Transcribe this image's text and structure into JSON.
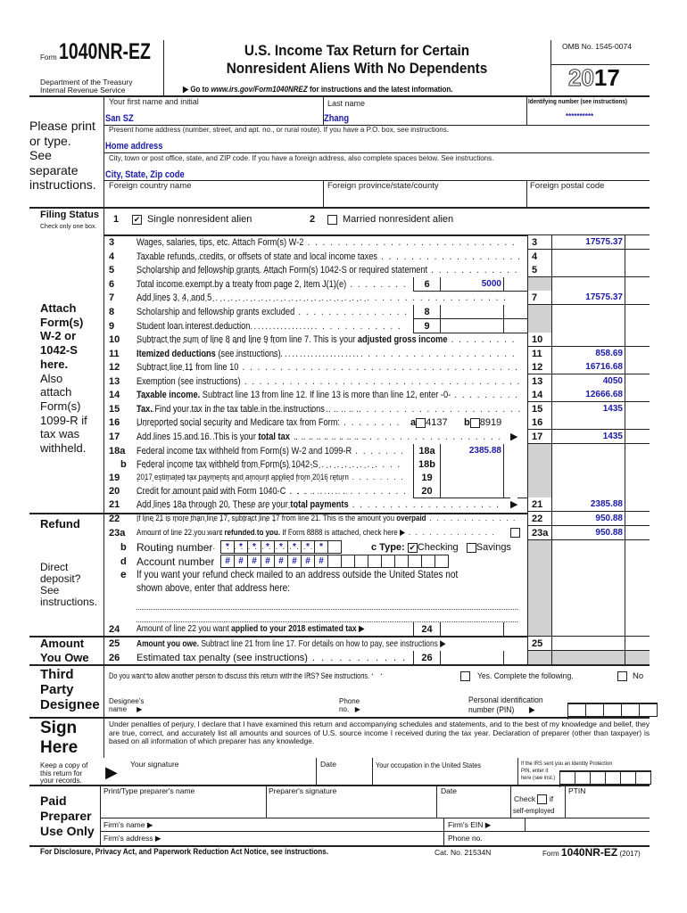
{
  "header": {
    "form_prefix": "Form",
    "form_number": "1040NR-EZ",
    "dept_line1": "Department of the Treasury",
    "dept_line2": "Internal Revenue Service",
    "title_line1": "U.S. Income Tax Return for Certain",
    "title_line2": "Nonresident Aliens With No Dependents",
    "goto_prefix": "▶ Go to ",
    "goto_url": "www.irs.gov/Form1040NREZ",
    "goto_suffix": " for instructions and the latest information.",
    "omb": "OMB No. 1545-0074",
    "year_outline": "20",
    "year_bold": "17"
  },
  "identity": {
    "side_note": [
      "Please print",
      "or type.",
      "See",
      "separate",
      "instructions."
    ],
    "first_name_label": "Your first name and initial",
    "first_name_value": "San SZ",
    "last_name_label": "Last name",
    "last_name_value": "Zhang",
    "id_label": "Identifying number (see instructions)",
    "id_value": "**********",
    "address_label": "Present home address (number, street, and apt. no., or rural route). If you have a P.O. box, see instructions.",
    "address_value": "Home address",
    "city_label": "City, town or post office, state, and ZIP code. If you have a foreign address, also complete spaces below. See instructions.",
    "city_value": "City, State, Zip code",
    "foreign_country_label": "Foreign country name",
    "foreign_province_label": "Foreign province/state/county",
    "foreign_postal_label": "Foreign postal code"
  },
  "filing_status": {
    "title": "Filing Status",
    "note": "Check only one box.",
    "options": [
      {
        "num": "1",
        "label": "Single nonresident alien",
        "checked": true
      },
      {
        "num": "2",
        "label": "Married nonresident alien",
        "checked": false
      }
    ]
  },
  "side_labels": {
    "attach_bold": [
      "Attach",
      "Form(s)",
      "W-2 or",
      "1042-S",
      "here."
    ],
    "attach_normal": [
      "Also",
      "attach",
      "Form(s)",
      "1099-R if",
      "tax was",
      "withheld."
    ],
    "refund": "Refund",
    "direct_deposit": [
      "Direct",
      "deposit?",
      "See",
      "instructions."
    ],
    "amount_owe": [
      "Amount",
      "You Owe"
    ]
  },
  "lines": [
    {
      "num": "3",
      "segs": [
        {
          "t": "Wages, salaries, tips, etc. Attach Form(s) W-2"
        }
      ],
      "box": "right",
      "amount": "17575.37"
    },
    {
      "num": "4",
      "segs": [
        {
          "t": "Taxable refunds, credits, or offsets of state and local income taxes"
        }
      ],
      "box": "right",
      "amount": ""
    },
    {
      "num": "5",
      "segs": [
        {
          "t": "Scholarship and fellowship grants. Attach Form(s) 1042-S or required statement"
        }
      ],
      "box": "right",
      "amount": ""
    },
    {
      "num": "6",
      "segs": [
        {
          "t": "Total income exempt by a treaty from page 2, Item J(1)(e)"
        }
      ],
      "box": "inner",
      "amount": "5000"
    },
    {
      "num": "7",
      "segs": [
        {
          "t": "Add lines 3, 4, and 5"
        }
      ],
      "box": "right",
      "amount": "17575.37"
    },
    {
      "num": "8",
      "segs": [
        {
          "t": "Scholarship and fellowship grants excluded"
        }
      ],
      "box": "inner",
      "amount": ""
    },
    {
      "num": "9",
      "segs": [
        {
          "t": "Student loan interest deduction"
        }
      ],
      "box": "inner",
      "amount": ""
    },
    {
      "num": "10",
      "segs": [
        {
          "t": "Subtract the sum of line 8 and line 9 from line 7. This is your "
        },
        {
          "t": "adjusted gross income",
          "b": true
        }
      ],
      "box": "right",
      "amount": ""
    },
    {
      "num": "11",
      "segs": [
        {
          "t": "Itemized deductions",
          "b": true
        },
        {
          "t": " (see instructions)"
        }
      ],
      "box": "right",
      "amount": "858.69"
    },
    {
      "num": "12",
      "segs": [
        {
          "t": "Subtract line 11 from line 10"
        }
      ],
      "box": "right",
      "amount": "16716.68"
    },
    {
      "num": "13",
      "segs": [
        {
          "t": "Exemption (see instructions)"
        }
      ],
      "box": "right",
      "amount": "4050"
    },
    {
      "num": "14",
      "segs": [
        {
          "t": "Taxable income.",
          "b": true
        },
        {
          "t": " Subtract line 13 from line 12. If line 13 is more than line 12, enter -0-"
        }
      ],
      "box": "right",
      "amount": "12666.68"
    },
    {
      "num": "15",
      "segs": [
        {
          "t": "Tax.",
          "b": true
        },
        {
          "t": " Find your tax in the tax table in the instructions"
        }
      ],
      "box": "right",
      "amount": "1435"
    },
    {
      "num": "16",
      "segs": [
        {
          "t": "Unreported social security and Medicare tax from Form:"
        }
      ],
      "box": "right",
      "amount": "",
      "checks": [
        {
          "letter": "a",
          "label": "4137"
        },
        {
          "letter": "b",
          "label": "8919"
        }
      ]
    },
    {
      "num": "17",
      "segs": [
        {
          "t": "Add lines 15 and 16. This is your "
        },
        {
          "t": "total tax",
          "b": true
        }
      ],
      "box": "right",
      "amount": "1435",
      "arrow": true
    },
    {
      "num": "18a",
      "segs": [
        {
          "t": "Federal income tax withheld from Form(s) W-2 and 1099-R"
        }
      ],
      "box": "inner",
      "amount": "2385.88"
    },
    {
      "num": "b",
      "box_num": "18b",
      "segs": [
        {
          "t": "Federal income tax withheld from Form(s) 1042-S"
        }
      ],
      "box": "inner",
      "amount": ""
    },
    {
      "num": "19",
      "segs": [
        {
          "t": "2017 estimated tax payments and amount applied from 2016 return"
        }
      ],
      "box": "inner",
      "amount": ""
    },
    {
      "num": "20",
      "segs": [
        {
          "t": "Credit for amount paid with Form 1040-C"
        }
      ],
      "box": "inner",
      "amount": ""
    },
    {
      "num": "21",
      "segs": [
        {
          "t": "Add lines 18a through 20. These are your "
        },
        {
          "t": "total payments",
          "b": true
        }
      ],
      "box": "right",
      "amount": "2385.88",
      "arrow": true
    },
    {
      "num": "22",
      "segs": [
        {
          "t": "If line 21 is more than line 17, subtract line 17 from line 21. This is the amount you "
        },
        {
          "t": "overpaid",
          "b": true
        }
      ],
      "box": "right",
      "amount": "950.88"
    },
    {
      "num": "23a",
      "segs": [
        {
          "t": "Amount of line 22 you want "
        },
        {
          "t": "refunded to you.",
          "b": true
        },
        {
          "t": " If Form 8888 is attached, check here ▶"
        }
      ],
      "box": "right",
      "amount": "950.88",
      "checkbox": true
    }
  ],
  "direct_deposit": {
    "routing_letter": "b",
    "routing_label": "Routing number",
    "routing_digits": [
      "*",
      "*",
      "*",
      "*",
      "*",
      "*",
      "*",
      "*",
      ""
    ],
    "type_label": "c Type:",
    "checking_label": "Checking",
    "checking_checked": true,
    "savings_label": "Savings",
    "savings_checked": false,
    "account_letter": "d",
    "account_label": "Account number",
    "account_digits": [
      "#",
      "#",
      "#",
      "#",
      "#",
      "#",
      "#",
      "#",
      "",
      "",
      "",
      "",
      "",
      "",
      "",
      "",
      ""
    ],
    "e_letter": "e",
    "e_text_line1": "If you want your refund check mailed to an address outside the United States not",
    "e_text_line2": "shown above, enter that address here:"
  },
  "lower_lines": {
    "l24": {
      "num": "24",
      "pre": "Amount of line 22 you want ",
      "bold": "applied to your 2018 estimated tax",
      "post": " ▶",
      "box": "24"
    },
    "l25": {
      "num": "25",
      "bold": "Amount you owe.",
      "post": " Subtract line 21 from line 17. For details on how to pay, see instructions ▶",
      "box": "25"
    },
    "l26": {
      "num": "26",
      "pre": "Estimated tax penalty (see instructions)",
      "box": "26"
    }
  },
  "third_party": {
    "title": [
      "Third",
      "Party",
      "Designee"
    ],
    "question": "Do you want to allow another person to discuss this return with the IRS? See instructions.",
    "yes_label": "Yes. Complete the following.",
    "no_label": "No",
    "designee_label1": "Designee's",
    "designee_label2": "name",
    "phone_label1": "Phone",
    "phone_label2": "no.",
    "pin_label1": "Personal identification",
    "pin_label2": "number (PIN)"
  },
  "sign": {
    "title": [
      "Sign",
      "Here"
    ],
    "declaration": "Under penalties of perjury, I declare that I have examined this return and accompanying schedules and statements, and to the best of my knowledge and belief, they are true, correct, and accurately list all amounts and sources of U.S. source income I received during the tax year. Declaration of preparer (other than taxpayer) is based on all information of which preparer has any knowledge.",
    "keep_copy": [
      "Keep a copy of",
      "this return for",
      "your records."
    ],
    "signature_label": "Your signature",
    "date_label": "Date",
    "occupation_label": "Your occupation in the United States",
    "ip_pin_label": [
      "If the IRS sent you an Identity Protection",
      "PIN, enter it",
      "here (see inst.)"
    ]
  },
  "preparer": {
    "title": [
      "Paid",
      "Preparer",
      "Use Only"
    ],
    "name_label": "Print/Type preparer's name",
    "signature_label": "Preparer's signature",
    "date_label": "Date",
    "check_label": "Check",
    "if_label": "if",
    "self_employed_label": "self-employed",
    "ptin_label": "PTIN",
    "firm_name_label": "Firm's name ▶",
    "firm_ein_label": "Firm's EIN ▶",
    "firm_address_label": "Firm's address ▶",
    "phone_label": "Phone no."
  },
  "footer": {
    "notice": "For Disclosure, Privacy Act, and Paperwork Reduction Act Notice, see instructions.",
    "cat_no": "Cat. No. 21534N",
    "form_prefix": "Form",
    "form_number": "1040NR-EZ",
    "form_year": "(2017)"
  }
}
